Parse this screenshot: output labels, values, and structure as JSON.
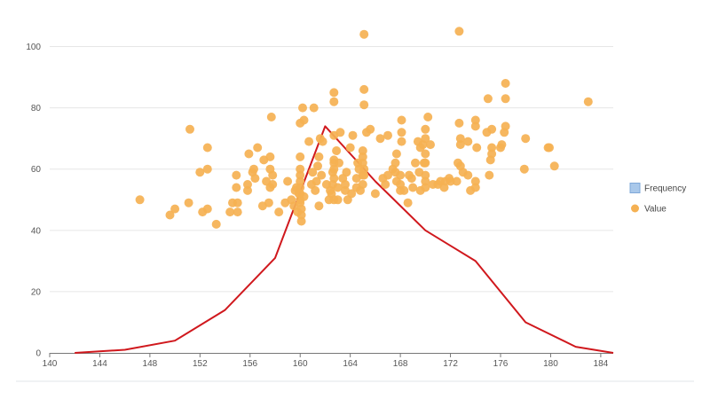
{
  "chart_data": {
    "type": "scatter",
    "xlim": [
      140,
      185
    ],
    "ylim": [
      0,
      110
    ],
    "x_ticks": [
      140,
      144,
      148,
      152,
      156,
      160,
      164,
      168,
      172,
      176,
      180,
      184
    ],
    "y_ticks": [
      0,
      20,
      40,
      60,
      80,
      100
    ],
    "grid": {
      "horizontal": true,
      "vertical": false
    },
    "legend_position": "right",
    "legend": [
      {
        "label": "Frequency",
        "color": "#a9c8ea",
        "border": "#7fa8d8",
        "marker": "square"
      },
      {
        "label": "Value",
        "color": "#f5b153",
        "marker": "circle"
      }
    ],
    "series": [
      {
        "name": "Frequency",
        "kind": "line",
        "color": "#d0181d",
        "x": [
          142,
          146,
          150,
          154,
          158,
          162,
          166,
          170,
          174,
          178,
          182,
          185
        ],
        "y": [
          0,
          1,
          4,
          14,
          31,
          74,
          56,
          40,
          30,
          10,
          2,
          0
        ]
      },
      {
        "name": "Value",
        "kind": "scatter",
        "color": "#f5b153",
        "points": [
          [
            147.2,
            50
          ],
          [
            149.6,
            45
          ],
          [
            150,
            47
          ],
          [
            151.1,
            49
          ],
          [
            151.2,
            73
          ],
          [
            152,
            59
          ],
          [
            152.2,
            46
          ],
          [
            152.6,
            47
          ],
          [
            152.6,
            60
          ],
          [
            152.6,
            67
          ],
          [
            153.3,
            42
          ],
          [
            154.4,
            46
          ],
          [
            154.6,
            49
          ],
          [
            154.9,
            54
          ],
          [
            154.9,
            58
          ],
          [
            155,
            46
          ],
          [
            155,
            49
          ],
          [
            155.8,
            53
          ],
          [
            155.8,
            55
          ],
          [
            155.9,
            65
          ],
          [
            156.2,
            59
          ],
          [
            156.3,
            60
          ],
          [
            156.4,
            57
          ],
          [
            156.6,
            67
          ],
          [
            157,
            48
          ],
          [
            157.1,
            63
          ],
          [
            157.3,
            56
          ],
          [
            157.5,
            49
          ],
          [
            157.6,
            54
          ],
          [
            157.6,
            60
          ],
          [
            157.6,
            64
          ],
          [
            157.7,
            77
          ],
          [
            157.8,
            55
          ],
          [
            157.8,
            58
          ],
          [
            158.3,
            46
          ],
          [
            158.8,
            49
          ],
          [
            159,
            56
          ],
          [
            159.3,
            50
          ],
          [
            159.5,
            48
          ],
          [
            159.6,
            53
          ],
          [
            159.7,
            54
          ],
          [
            159.8,
            46
          ],
          [
            159.9,
            52
          ],
          [
            160,
            49
          ],
          [
            160,
            50
          ],
          [
            160,
            52
          ],
          [
            160,
            54
          ],
          [
            160,
            56
          ],
          [
            160,
            58
          ],
          [
            160,
            60
          ],
          [
            160,
            64
          ],
          [
            160,
            75
          ],
          [
            160.1,
            43
          ],
          [
            160.1,
            45
          ],
          [
            160.1,
            47
          ],
          [
            160.2,
            80
          ],
          [
            160.3,
            51
          ],
          [
            160.3,
            76
          ],
          [
            160.7,
            69
          ],
          [
            160.9,
            55
          ],
          [
            161,
            59
          ],
          [
            161.1,
            80
          ],
          [
            161.2,
            53
          ],
          [
            161.3,
            56
          ],
          [
            161.4,
            61
          ],
          [
            161.5,
            48
          ],
          [
            161.5,
            64
          ],
          [
            161.6,
            70
          ],
          [
            161.7,
            58
          ],
          [
            161.8,
            69
          ],
          [
            162.1,
            55
          ],
          [
            162.3,
            50
          ],
          [
            162.4,
            53
          ],
          [
            162.5,
            52
          ],
          [
            162.6,
            55
          ],
          [
            162.6,
            59
          ],
          [
            162.7,
            50
          ],
          [
            162.7,
            57
          ],
          [
            162.7,
            60
          ],
          [
            162.7,
            62
          ],
          [
            162.7,
            63
          ],
          [
            162.7,
            71
          ],
          [
            162.7,
            82
          ],
          [
            162.7,
            85
          ],
          [
            162.9,
            66
          ],
          [
            163,
            50
          ],
          [
            163,
            54
          ],
          [
            163.1,
            62
          ],
          [
            163.2,
            72
          ],
          [
            163.4,
            57
          ],
          [
            163.6,
            53
          ],
          [
            163.6,
            55
          ],
          [
            163.7,
            59
          ],
          [
            163.8,
            50
          ],
          [
            164,
            67
          ],
          [
            164.1,
            52
          ],
          [
            164.2,
            71
          ],
          [
            164.5,
            54
          ],
          [
            164.5,
            57
          ],
          [
            164.6,
            62
          ],
          [
            164.7,
            60
          ],
          [
            164.8,
            53
          ],
          [
            165,
            55
          ],
          [
            165,
            58
          ],
          [
            165,
            62
          ],
          [
            165,
            64
          ],
          [
            165,
            66
          ],
          [
            165.1,
            58
          ],
          [
            165.1,
            60
          ],
          [
            165.1,
            81
          ],
          [
            165.1,
            86
          ],
          [
            165.1,
            104
          ],
          [
            165.3,
            72
          ],
          [
            165.6,
            73
          ],
          [
            166,
            52
          ],
          [
            166.4,
            70
          ],
          [
            166.6,
            57
          ],
          [
            166.8,
            55
          ],
          [
            167,
            58
          ],
          [
            167,
            71
          ],
          [
            167.4,
            60
          ],
          [
            167.6,
            59
          ],
          [
            167.6,
            62
          ],
          [
            167.7,
            56
          ],
          [
            167.7,
            65
          ],
          [
            168,
            53
          ],
          [
            168,
            55
          ],
          [
            168,
            58
          ],
          [
            168.1,
            69
          ],
          [
            168.1,
            72
          ],
          [
            168.1,
            76
          ],
          [
            168.3,
            53
          ],
          [
            168.6,
            49
          ],
          [
            168.7,
            58
          ],
          [
            168.9,
            57
          ],
          [
            169,
            54
          ],
          [
            169.2,
            62
          ],
          [
            169.4,
            69
          ],
          [
            169.5,
            59
          ],
          [
            169.6,
            53
          ],
          [
            169.6,
            67
          ],
          [
            169.8,
            68
          ],
          [
            169.9,
            62
          ],
          [
            170,
            54
          ],
          [
            170,
            56
          ],
          [
            170,
            58
          ],
          [
            170,
            62
          ],
          [
            170,
            65
          ],
          [
            170,
            70
          ],
          [
            170,
            73
          ],
          [
            170.2,
            77
          ],
          [
            170.4,
            68
          ],
          [
            170.6,
            55
          ],
          [
            171,
            55
          ],
          [
            171.2,
            56
          ],
          [
            171.5,
            54
          ],
          [
            171.6,
            56
          ],
          [
            171.9,
            57
          ],
          [
            172,
            56
          ],
          [
            172.5,
            56
          ],
          [
            172.6,
            62
          ],
          [
            172.7,
            75
          ],
          [
            172.7,
            105
          ],
          [
            172.8,
            61
          ],
          [
            172.8,
            68
          ],
          [
            172.8,
            70
          ],
          [
            173,
            59
          ],
          [
            173.4,
            58
          ],
          [
            173.4,
            69
          ],
          [
            173.6,
            53
          ],
          [
            174,
            54
          ],
          [
            174,
            56
          ],
          [
            174,
            74
          ],
          [
            174,
            76
          ],
          [
            174.1,
            67
          ],
          [
            174.9,
            72
          ],
          [
            175,
            83
          ],
          [
            175.1,
            58
          ],
          [
            175.2,
            63
          ],
          [
            175.3,
            65
          ],
          [
            175.3,
            67
          ],
          [
            175.3,
            73
          ],
          [
            176,
            67
          ],
          [
            176.1,
            68
          ],
          [
            176.3,
            72
          ],
          [
            176.4,
            74
          ],
          [
            176.4,
            83
          ],
          [
            176.4,
            88
          ],
          [
            177.9,
            60
          ],
          [
            178,
            70
          ],
          [
            179.8,
            67
          ],
          [
            179.9,
            67
          ],
          [
            180.3,
            61
          ],
          [
            183,
            82
          ]
        ]
      }
    ]
  }
}
